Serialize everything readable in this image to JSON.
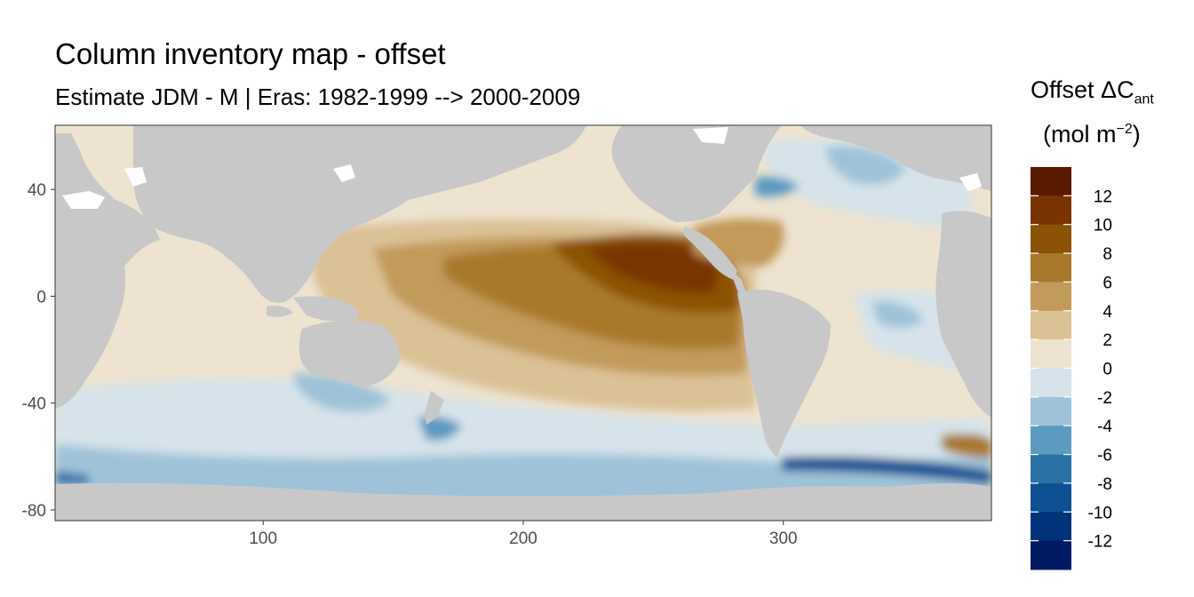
{
  "title": "Column inventory map - offset",
  "subtitle": "Estimate JDM - M | Eras: 1982-1999 --> 2000-2009",
  "legend": {
    "title_main": "Offset ΔC",
    "title_sub": "ant",
    "units_main": "(mol m",
    "units_sup": "−2",
    "units_close": ")",
    "breaks": [
      "12",
      "10",
      "8",
      "6",
      "4",
      "2",
      "0",
      "-2",
      "-4",
      "-6",
      "-8",
      "-10",
      "-12"
    ],
    "colors": [
      "#5a1a00",
      "#7a3400",
      "#8c5206",
      "#a8792c",
      "#c29a5a",
      "#dbc196",
      "#ede3d0",
      "#d6e3ea",
      "#9fc2d8",
      "#5c9ac0",
      "#2a72a6",
      "#0d5193",
      "#003379",
      "#001a63"
    ]
  },
  "axes": {
    "x_ticks": [
      {
        "value": 100,
        "label": "100"
      },
      {
        "value": 200,
        "label": "200"
      },
      {
        "value": 300,
        "label": "300"
      }
    ],
    "y_ticks": [
      {
        "value": 40,
        "label": "40"
      },
      {
        "value": 0,
        "label": "0"
      },
      {
        "value": -40,
        "label": "-40"
      },
      {
        "value": -80,
        "label": "-80"
      }
    ],
    "xlim": [
      20,
      380
    ],
    "ylim": [
      -84,
      64
    ]
  },
  "map_colors": {
    "land": "#c8c8c8",
    "no_data": "#ffffff"
  }
}
